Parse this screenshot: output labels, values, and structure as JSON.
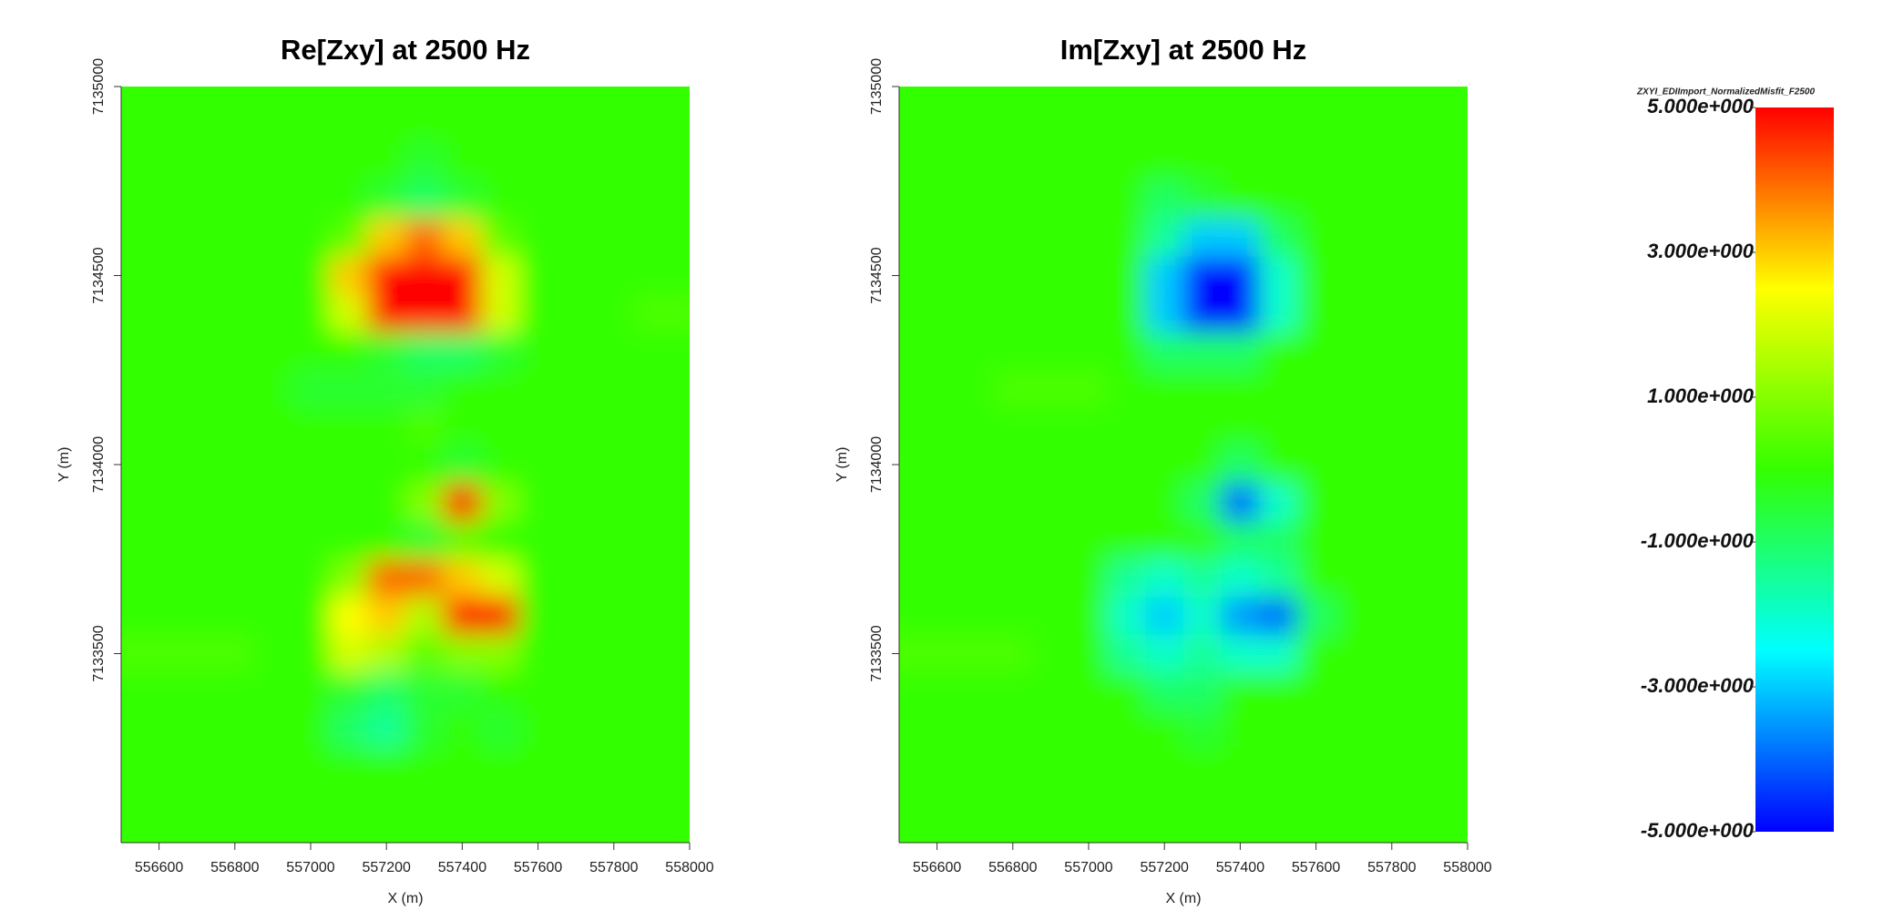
{
  "chart_data": [
    {
      "type": "heatmap",
      "title": "Re[Zxy] at 2500 Hz",
      "xlabel": "X (m)",
      "ylabel": "Y (m)",
      "xlim": [
        556500,
        558000
      ],
      "ylim": [
        7133000,
        7135000
      ],
      "xticks": [
        556600,
        556800,
        557000,
        557200,
        557400,
        557600,
        557800,
        558000
      ],
      "yticks": [
        7133500,
        7134000,
        7134500,
        7135000
      ],
      "x": [
        556500,
        556600,
        556700,
        556800,
        556900,
        557000,
        557100,
        557200,
        557300,
        557400,
        557500,
        557600,
        557700,
        557800,
        557900,
        558000
      ],
      "y": [
        7135000,
        7134900,
        7134800,
        7134700,
        7134600,
        7134500,
        7134400,
        7134300,
        7134200,
        7134100,
        7134000,
        7133900,
        7133800,
        7133700,
        7133600,
        7133500,
        7133400,
        7133300,
        7133200,
        7133100,
        7133000
      ],
      "z": [
        [
          0,
          0,
          0,
          0,
          0,
          0,
          0,
          0,
          0,
          0,
          0,
          0,
          0,
          0,
          0,
          0
        ],
        [
          0,
          0,
          0,
          0,
          0,
          0,
          0,
          0,
          0,
          0,
          0,
          0,
          0,
          0,
          0,
          0
        ],
        [
          0,
          0,
          0,
          0,
          0,
          0,
          0,
          0,
          -0.5,
          0,
          0,
          0,
          0,
          0,
          0,
          0
        ],
        [
          0,
          0,
          0,
          0,
          0,
          0,
          0,
          -0.5,
          -1,
          -0.5,
          0,
          0,
          0,
          0,
          0,
          0
        ],
        [
          0,
          0,
          0,
          0,
          0,
          0,
          0.5,
          3,
          4,
          3,
          0.5,
          0,
          0,
          0,
          0,
          0
        ],
        [
          0,
          0,
          0,
          0,
          0,
          0,
          3,
          6,
          7,
          6,
          2,
          0,
          0,
          0,
          0,
          0
        ],
        [
          0,
          0,
          0,
          0,
          0,
          0,
          2,
          6,
          7,
          6,
          2,
          0,
          0,
          0,
          0.3,
          0.3
        ],
        [
          0,
          0,
          0,
          0,
          0,
          0,
          0,
          -0.5,
          -1,
          -1,
          -0.5,
          0,
          0,
          0,
          0,
          0
        ],
        [
          0,
          0,
          0,
          0,
          0,
          -0.5,
          -0.5,
          -0.5,
          -0.5,
          0,
          0,
          0,
          0,
          0,
          0,
          0
        ],
        [
          0,
          0,
          0,
          0,
          0,
          0,
          0,
          0,
          0.3,
          0,
          0,
          0,
          0,
          0,
          0,
          0
        ],
        [
          0,
          0,
          0,
          0,
          0,
          0,
          0,
          0,
          0,
          -0.5,
          0,
          0,
          0,
          0,
          0,
          0
        ],
        [
          0,
          0,
          0,
          0,
          0,
          0,
          0,
          0,
          1,
          5,
          1,
          0,
          0,
          0,
          0,
          0
        ],
        [
          0,
          0,
          0,
          0,
          0,
          0,
          0,
          0,
          -0.5,
          0.5,
          0,
          0,
          0,
          0,
          0,
          0
        ],
        [
          0,
          0,
          0,
          0,
          0,
          0,
          1,
          4,
          4,
          3,
          2,
          0,
          0,
          0,
          0,
          0
        ],
        [
          0,
          0,
          0,
          0,
          0,
          0,
          2.5,
          3,
          1.5,
          5,
          5,
          0,
          0,
          0,
          0,
          0
        ],
        [
          0.3,
          0.3,
          0.3,
          0.3,
          0,
          0,
          2,
          1.5,
          0.5,
          1,
          1,
          0,
          0,
          0,
          0,
          0
        ],
        [
          0,
          0,
          0,
          0,
          0,
          0,
          -0.5,
          -1,
          -0.5,
          -0.5,
          0,
          0,
          0,
          0,
          0,
          0
        ],
        [
          0,
          0,
          0,
          0,
          0,
          0,
          -1,
          -1.5,
          -0.5,
          0,
          -0.5,
          0,
          0,
          0,
          0,
          0
        ],
        [
          0,
          0,
          0,
          0,
          0,
          0,
          0,
          0,
          0,
          0,
          0,
          0,
          0,
          0,
          0,
          0
        ],
        [
          0,
          0,
          0,
          0,
          0,
          0,
          0,
          0,
          0,
          0,
          0,
          0,
          0,
          0,
          0,
          0
        ],
        [
          0,
          0,
          0,
          0,
          0,
          0,
          0,
          0,
          0,
          0,
          0,
          0,
          0,
          0,
          0,
          0
        ]
      ]
    },
    {
      "type": "heatmap",
      "title": "Im[Zxy] at 2500 Hz",
      "xlabel": "X (m)",
      "ylabel": "Y (m)",
      "xlim": [
        556500,
        558000
      ],
      "ylim": [
        7133000,
        7135000
      ],
      "xticks": [
        556600,
        556800,
        557000,
        557200,
        557400,
        557600,
        557800,
        558000
      ],
      "yticks": [
        7133500,
        7134000,
        7134500,
        7135000
      ],
      "x": [
        556500,
        556600,
        556700,
        556800,
        556900,
        557000,
        557100,
        557200,
        557300,
        557400,
        557500,
        557600,
        557700,
        557800,
        557900,
        558000
      ],
      "y": [
        7135000,
        7134900,
        7134800,
        7134700,
        7134600,
        7134500,
        7134400,
        7134300,
        7134200,
        7134100,
        7134000,
        7133900,
        7133800,
        7133700,
        7133600,
        7133500,
        7133400,
        7133300,
        7133200,
        7133100,
        7133000
      ],
      "z": [
        [
          0,
          0,
          0,
          0,
          0,
          0,
          0,
          0,
          0,
          0,
          0,
          0,
          0,
          0,
          0,
          0
        ],
        [
          0,
          0,
          0,
          0,
          0,
          0,
          0,
          0,
          0,
          0,
          0,
          0,
          0,
          0,
          0,
          0
        ],
        [
          0,
          0,
          0,
          0,
          0,
          0,
          0,
          0,
          0,
          0,
          0,
          0,
          0,
          0,
          0,
          0
        ],
        [
          0,
          0,
          0,
          0,
          0,
          0,
          0,
          -1,
          -0.5,
          0,
          0,
          0,
          0,
          0,
          0,
          0
        ],
        [
          0,
          0,
          0,
          0,
          0,
          0,
          0,
          -1.5,
          -3,
          -3,
          -1,
          0,
          0,
          0,
          0,
          0
        ],
        [
          0,
          0,
          0,
          0,
          0,
          0,
          0,
          -3,
          -5,
          -5,
          -2,
          0,
          0,
          0,
          0,
          0
        ],
        [
          0,
          0,
          0,
          0,
          0,
          0,
          0,
          -3,
          -6,
          -6,
          -2,
          0,
          0,
          0,
          0,
          0
        ],
        [
          0,
          0,
          0,
          0,
          0,
          0,
          0,
          -1,
          -1,
          -1,
          0,
          0,
          0,
          0,
          0,
          0
        ],
        [
          0,
          0,
          0,
          0.3,
          0.3,
          0.3,
          0,
          0,
          0,
          0,
          0,
          0,
          0,
          0,
          0,
          0
        ],
        [
          0,
          0,
          0,
          0,
          0,
          0,
          0,
          0,
          0,
          0,
          0,
          0,
          0,
          0,
          0,
          0
        ],
        [
          0,
          0,
          0,
          0,
          0,
          0,
          0,
          0,
          0,
          -1,
          0,
          0,
          0,
          0,
          0,
          0
        ],
        [
          0,
          0,
          0,
          0,
          0,
          0,
          0,
          0,
          -1,
          -4,
          -2,
          0,
          0,
          0,
          0,
          0
        ],
        [
          0,
          0,
          0,
          0,
          0,
          0,
          0,
          0,
          0,
          -1,
          -1,
          0,
          0,
          0,
          0,
          0
        ],
        [
          0,
          0,
          0,
          0,
          0,
          0,
          -1.5,
          -2,
          -1.5,
          -2,
          -1.5,
          0,
          0,
          0,
          0,
          0
        ],
        [
          0,
          0,
          0,
          0,
          0,
          0,
          -2,
          -3,
          -2,
          -3.5,
          -4,
          -1,
          0,
          0,
          0,
          0
        ],
        [
          0.3,
          0.3,
          0.3,
          0.3,
          0,
          0,
          -1.5,
          -2,
          -1.5,
          -2,
          -2,
          0,
          0,
          0,
          0,
          0
        ],
        [
          0,
          0,
          0,
          0,
          0,
          0,
          0,
          -1,
          -1,
          0,
          0,
          0,
          0,
          0,
          0,
          0
        ],
        [
          0,
          0,
          0,
          0,
          0,
          0,
          0,
          0,
          -0.5,
          0,
          0,
          0,
          0,
          0,
          0,
          0
        ],
        [
          0,
          0,
          0,
          0,
          0,
          0,
          0,
          0,
          0,
          0,
          0,
          0,
          0,
          0,
          0,
          0
        ],
        [
          0,
          0,
          0,
          0,
          0,
          0,
          0,
          0,
          0,
          0,
          0,
          0,
          0,
          0,
          0,
          0
        ],
        [
          0,
          0,
          0,
          0,
          0,
          0,
          0,
          0,
          0,
          0,
          0,
          0,
          0,
          0,
          0,
          0
        ]
      ]
    },
    {
      "type": "colorbar",
      "title": "ZXYI_EDIImport_NormalizedMisfit_F2500",
      "clim": [
        -5,
        5
      ],
      "colors": [
        "#0000ff",
        "#00ffff",
        "#33ff00",
        "#ffff00",
        "#ff0000"
      ],
      "ticks": [
        {
          "value": 5,
          "label": "5.000e+000"
        },
        {
          "value": 3,
          "label": "3.000e+000"
        },
        {
          "value": 1,
          "label": "1.000e+000"
        },
        {
          "value": -1,
          "label": "-1.000e+000"
        },
        {
          "value": -3,
          "label": "-3.000e+000"
        },
        {
          "value": -5,
          "label": "-5.000e+000"
        }
      ]
    }
  ]
}
